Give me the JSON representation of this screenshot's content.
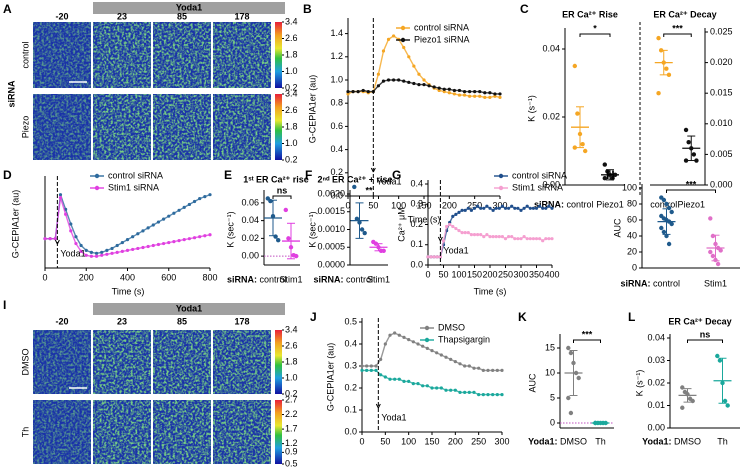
{
  "images": [
    {
      "panel": "A",
      "bar_label": "Yoda1",
      "times": [
        -20,
        23,
        85,
        178
      ],
      "group_label": "siRNA",
      "rows": [
        "control",
        "Piezo"
      ],
      "colorbars": [
        [
          3.4,
          2.6,
          1.8,
          {
            "value": 1,
            "label": "1.0"
          },
          0.2
        ],
        [
          3.4,
          2.6,
          1.8,
          {
            "value": 1,
            "label": "1.0"
          },
          0.2
        ]
      ]
    },
    {
      "panel": "I",
      "bar_label": "Yoda1",
      "times": [
        -20,
        23,
        85,
        178
      ],
      "rows": [
        "DMSO",
        "Th"
      ],
      "colorbars": [
        [
          3.4,
          2.6,
          1.8,
          {
            "value": 1,
            "label": "1.0"
          },
          0.2
        ],
        [
          2.7,
          2.2,
          1.7,
          1.2,
          0.9,
          0.5
        ]
      ]
    }
  ],
  "chart_data": [
    {
      "type": "line",
      "panel": "B",
      "ylabel": "G-CEPIA1er (au)",
      "xlabel": "Time (s)",
      "x": [
        0,
        10,
        20,
        30,
        40,
        50,
        60,
        70,
        80,
        90,
        100,
        110,
        120,
        130,
        140,
        150,
        160,
        170,
        180,
        190,
        200,
        210,
        220,
        230,
        240,
        250,
        260,
        270,
        280,
        290,
        300
      ],
      "xlim": [
        0,
        300
      ],
      "xticks": [
        0,
        50,
        100,
        150,
        200,
        250,
        300
      ],
      "ylim": [
        0,
        1.5
      ],
      "yticks": [
        {
          "value": 0,
          "label": "0.0"
        },
        0.2,
        0.4,
        0.6,
        0.8,
        {
          "value": 1,
          "label": "1.0"
        },
        1.2,
        1.4
      ],
      "event": {
        "x": 50,
        "label": "Yoda1"
      },
      "series": [
        {
          "name": "control siRNA",
          "color": "#f5a623",
          "values": [
            0.88,
            0.9,
            0.9,
            0.9,
            0.89,
            0.9,
            1.05,
            1.25,
            1.35,
            1.38,
            1.35,
            1.28,
            1.2,
            1.12,
            1.05,
            1.0,
            0.96,
            0.93,
            0.91,
            0.9,
            0.89,
            0.88,
            0.87,
            0.87,
            0.86,
            0.86,
            0.86,
            0.85,
            0.85,
            0.86,
            0.85
          ]
        },
        {
          "name": "Piezo1 siRNA",
          "color": "#111111",
          "values": [
            0.9,
            0.9,
            0.9,
            0.91,
            0.9,
            0.9,
            0.95,
            0.99,
            1.0,
            1.0,
            1.0,
            0.99,
            0.98,
            0.97,
            0.96,
            0.96,
            0.95,
            0.94,
            0.93,
            0.92,
            0.92,
            0.91,
            0.91,
            0.9,
            0.9,
            0.9,
            0.9,
            0.89,
            0.89,
            0.88,
            0.88
          ]
        }
      ]
    },
    {
      "type": "strip",
      "panel": "C",
      "title": "ER Ca²⁺ Rise",
      "ylabel": "K (s⁻¹)",
      "prefix": "siRNA:",
      "categories": [
        "control",
        "Piezo1"
      ],
      "colors": [
        "#f5a623",
        "#111111"
      ],
      "points": [
        [
          0.035,
          0.021,
          0.015,
          0.012,
          0.01,
          0.011
        ],
        [
          0.006,
          0.004,
          0.003,
          0.002,
          0.003,
          0.002
        ]
      ],
      "means": [
        0.017,
        0.003
      ],
      "errors": [
        0.006,
        0.0015
      ],
      "ylim": [
        0,
        0.045
      ],
      "yticks": [
        {
          "value": 0,
          "label": "0.00"
        },
        0.02,
        0.04
      ],
      "annotation": "*"
    },
    {
      "type": "strip",
      "title": "ER Ca²⁺ Decay",
      "yaxis": "right",
      "categories": [
        "control",
        "Piezo1"
      ],
      "colors": [
        "#f5a623",
        "#111111"
      ],
      "points": [
        [
          0.024,
          0.022,
          0.02,
          0.019,
          0.018,
          0.015
        ],
        [
          0.009,
          0.007,
          0.006,
          0.005,
          0.004,
          0.004
        ]
      ],
      "means": [
        0.02,
        0.006
      ],
      "errors": [
        0.002,
        0.002
      ],
      "ylim": [
        0,
        0.025
      ],
      "yticks": [
        {
          "value": 0,
          "label": "0.000"
        },
        0.005,
        {
          "value": 0.01,
          "label": "0.010"
        },
        0.015,
        {
          "value": 0.02,
          "label": "0.020"
        },
        0.025
      ],
      "annotation": "***"
    },
    {
      "type": "line",
      "panel": "D",
      "ylabel": "G-CEPIA1er (au)",
      "xlabel": "Time (s)",
      "x": [
        0,
        25,
        50,
        75,
        100,
        125,
        150,
        175,
        200,
        225,
        250,
        275,
        300,
        325,
        350,
        375,
        400,
        425,
        450,
        475,
        500,
        525,
        550,
        575,
        600,
        625,
        650,
        675,
        700,
        725,
        750,
        775,
        800
      ],
      "xlim": [
        0,
        800
      ],
      "xticks": [
        0,
        200,
        400,
        600,
        800
      ],
      "ylim": [
        0.7,
        1.6
      ],
      "event": {
        "x": 60,
        "label": "Yoda1"
      },
      "series": [
        {
          "name": "control siRNA",
          "color": "#2e6b9e",
          "values": [
            1.0,
            1.0,
            1.0,
            1.45,
            1.3,
            1.15,
            1.02,
            0.93,
            0.88,
            0.86,
            0.85,
            0.86,
            0.88,
            0.9,
            0.93,
            0.96,
            0.99,
            1.02,
            1.05,
            1.08,
            1.11,
            1.14,
            1.17,
            1.2,
            1.23,
            1.26,
            1.29,
            1.32,
            1.35,
            1.38,
            1.41,
            1.43,
            1.45
          ]
        },
        {
          "name": "Stim1 siRNA",
          "color": "#e03fe0",
          "values": [
            1.0,
            1.0,
            1.0,
            1.42,
            1.25,
            1.08,
            0.95,
            0.87,
            0.83,
            0.82,
            0.82,
            0.83,
            0.84,
            0.85,
            0.86,
            0.87,
            0.88,
            0.89,
            0.9,
            0.91,
            0.92,
            0.93,
            0.94,
            0.95,
            0.96,
            0.97,
            0.98,
            0.99,
            1.0,
            1.01,
            1.02,
            1.03,
            1.04
          ]
        }
      ]
    },
    {
      "type": "strip",
      "panel": "E",
      "title": "1ˢᵗ ER Ca²⁺ rise",
      "ylabel": "K (sec⁻¹)",
      "prefix": "siRNA:",
      "categories": [
        "control",
        "Stim1"
      ],
      "colors": [
        "#1f5a8c",
        "#e03fe0"
      ],
      "points": [
        [
          0.065,
          0.062,
          0.045,
          0.022,
          0.018
        ],
        [
          0.052,
          0.02,
          0.01,
          0.001,
          0.0
        ]
      ],
      "means": [
        0.043,
        0.017
      ],
      "errors": [
        0.02,
        0.02
      ],
      "ylim": [
        -0.01,
        0.07
      ],
      "yticks": [
        {
          "value": 0,
          "label": "0.00"
        },
        0.02,
        0.04,
        0.06
      ],
      "zero_line": true,
      "annotation": "ns"
    },
    {
      "type": "strip",
      "panel": "F",
      "title": "2ⁿᵈ ER Ca²⁺ + rise",
      "ylabel": "K (sec⁻¹)",
      "prefix": "siRNA:",
      "categories": [
        "control",
        "Stim1"
      ],
      "colors": [
        "#1f5a8c",
        "#e03fe0"
      ],
      "points": [
        [
          0.0022,
          0.0013,
          0.0012,
          0.001,
          0.0009
        ],
        [
          0.00065,
          0.0006,
          0.0005,
          0.0004,
          0.0004
        ]
      ],
      "means": [
        0.00125,
        0.0005
      ],
      "errors": [
        0.0005,
        0.0001
      ],
      "ylim": [
        0,
        0.002
      ],
      "yticks": [
        {
          "value": 0,
          "label": "0.0000"
        },
        0.0005,
        {
          "value": 0.001,
          "label": "0.0010"
        },
        0.0015,
        {
          "value": 0.002,
          "label": "0.0020"
        }
      ],
      "annotation": "**"
    },
    {
      "type": "line",
      "panel": "G",
      "ylabel": "Ca²⁺ μM",
      "xlabel": "Time (s)",
      "x": [
        0,
        10,
        20,
        30,
        40,
        50,
        60,
        70,
        80,
        90,
        100,
        110,
        120,
        130,
        140,
        150,
        160,
        170,
        180,
        190,
        200,
        210,
        220,
        230,
        240,
        250,
        260,
        270,
        280,
        290,
        300,
        310,
        320,
        330,
        340,
        350,
        360,
        370,
        380,
        390,
        400
      ],
      "xlim": [
        0,
        400
      ],
      "xticks": [
        0,
        50,
        100,
        150,
        200,
        250,
        300,
        350,
        400
      ],
      "ylim": [
        0,
        0.4
      ],
      "yticks": [
        {
          "value": 0,
          "label": "0.0"
        },
        0.1,
        0.2,
        0.3,
        0.4
      ],
      "event": {
        "x": 40,
        "label": "Yoda1"
      },
      "series": [
        {
          "name": "control siRNA",
          "color": "#1f4e8c",
          "values": [
            0.04,
            0.04,
            0.04,
            0.04,
            0.04,
            0.1,
            0.17,
            0.21,
            0.24,
            0.25,
            0.26,
            0.27,
            0.27,
            0.28,
            0.27,
            0.28,
            0.29,
            0.28,
            0.28,
            0.29,
            0.28,
            0.27,
            0.28,
            0.28,
            0.29,
            0.28,
            0.28,
            0.29,
            0.28,
            0.28,
            0.27,
            0.28,
            0.29,
            0.28,
            0.28,
            0.28,
            0.29,
            0.28,
            0.28,
            0.29,
            0.28
          ]
        },
        {
          "name": "Stim1 siRNA",
          "color": "#f59fd0",
          "values": [
            0.04,
            0.04,
            0.04,
            0.04,
            0.04,
            0.12,
            0.19,
            0.2,
            0.19,
            0.18,
            0.17,
            0.16,
            0.16,
            0.16,
            0.15,
            0.15,
            0.15,
            0.15,
            0.14,
            0.15,
            0.14,
            0.14,
            0.14,
            0.14,
            0.14,
            0.13,
            0.14,
            0.14,
            0.13,
            0.13,
            0.13,
            0.14,
            0.13,
            0.13,
            0.13,
            0.13,
            0.13,
            0.12,
            0.13,
            0.13,
            0.13
          ]
        }
      ]
    },
    {
      "type": "strip",
      "panel": "H",
      "ylabel": "AUC",
      "prefix": "siRNA:",
      "categories": [
        "control",
        "Stim1"
      ],
      "colors": [
        "#1f5a8c",
        "#e070c8"
      ],
      "points": [
        [
          88,
          85,
          80,
          75,
          70,
          65,
          62,
          60,
          58,
          55,
          50,
          45,
          40,
          30
        ],
        [
          62,
          40,
          30,
          25,
          22,
          20,
          15,
          10,
          5
        ]
      ],
      "means": [
        58,
        25
      ],
      "errors": [
        16,
        16
      ],
      "ylim": [
        0,
        100
      ],
      "yticks": [
        0,
        20,
        40,
        60,
        80,
        100
      ],
      "annotation": "***"
    },
    {
      "type": "line",
      "panel": "J",
      "ylabel": "G-CEPIA1er (au)",
      "x": [
        0,
        10,
        20,
        30,
        40,
        50,
        60,
        70,
        80,
        90,
        100,
        110,
        120,
        130,
        140,
        150,
        160,
        170,
        180,
        190,
        200,
        210,
        220,
        230,
        240,
        250,
        260,
        270,
        280,
        290,
        300
      ],
      "xlim": [
        0,
        300
      ],
      "xticks": [
        0,
        50,
        100,
        150,
        200,
        250,
        300
      ],
      "ylim": [
        0,
        0.5
      ],
      "yticks": [
        {
          "value": 0,
          "label": "0.0"
        },
        0.1,
        0.2,
        0.3,
        0.4,
        0.5
      ],
      "event": {
        "x": 35,
        "label": "Yoda1"
      },
      "series": [
        {
          "name": "DMSO",
          "color": "#808080",
          "values": [
            0.3,
            0.3,
            0.3,
            0.3,
            0.33,
            0.4,
            0.44,
            0.45,
            0.44,
            0.43,
            0.42,
            0.41,
            0.4,
            0.39,
            0.38,
            0.37,
            0.36,
            0.35,
            0.34,
            0.33,
            0.32,
            0.31,
            0.3,
            0.3,
            0.29,
            0.29,
            0.28,
            0.28,
            0.28,
            0.28,
            0.28
          ]
        },
        {
          "name": "Thapsigargin",
          "color": "#1aa89c",
          "values": [
            0.28,
            0.28,
            0.28,
            0.28,
            0.26,
            0.25,
            0.24,
            0.24,
            0.24,
            0.23,
            0.23,
            0.22,
            0.22,
            0.21,
            0.21,
            0.2,
            0.2,
            0.2,
            0.19,
            0.19,
            0.19,
            0.18,
            0.18,
            0.18,
            0.18,
            0.17,
            0.17,
            0.17,
            0.17,
            0.17,
            0.17
          ]
        }
      ]
    },
    {
      "type": "strip",
      "panel": "K",
      "ylabel": "AUC",
      "prefix": "Yoda1:",
      "categories": [
        "DMSO",
        "Th"
      ],
      "colors": [
        "#808080",
        "#1aa89c"
      ],
      "points": [
        [
          15,
          14,
          12,
          10,
          9,
          5,
          2
        ],
        [
          0,
          0,
          0,
          0,
          0,
          0
        ]
      ],
      "means": [
        10,
        0
      ],
      "errors": [
        4.5,
        0
      ],
      "ylim": [
        -1,
        17
      ],
      "yticks": [
        0,
        5,
        10,
        15
      ],
      "zero_line": true,
      "annotation": "***"
    },
    {
      "type": "strip",
      "panel": "L",
      "title": "ER Ca²⁺ Decay",
      "ylabel": "K (s⁻¹)",
      "prefix": "Yoda1:",
      "categories": [
        "DMSO",
        "Th"
      ],
      "colors": [
        "#808080",
        "#1aa89c"
      ],
      "points": [
        [
          0.018,
          0.016,
          0.015,
          0.013,
          0.012,
          0.009
        ],
        [
          0.032,
          0.03,
          0.02,
          0.012,
          0.01
        ]
      ],
      "means": [
        0.0145,
        0.021
      ],
      "errors": [
        0.003,
        0.01
      ],
      "ylim": [
        0,
        0.04
      ],
      "yticks": [
        {
          "value": 0,
          "label": "0.00"
        },
        0.01,
        0.02,
        0.03,
        0.04
      ],
      "annotation": "ns"
    }
  ]
}
